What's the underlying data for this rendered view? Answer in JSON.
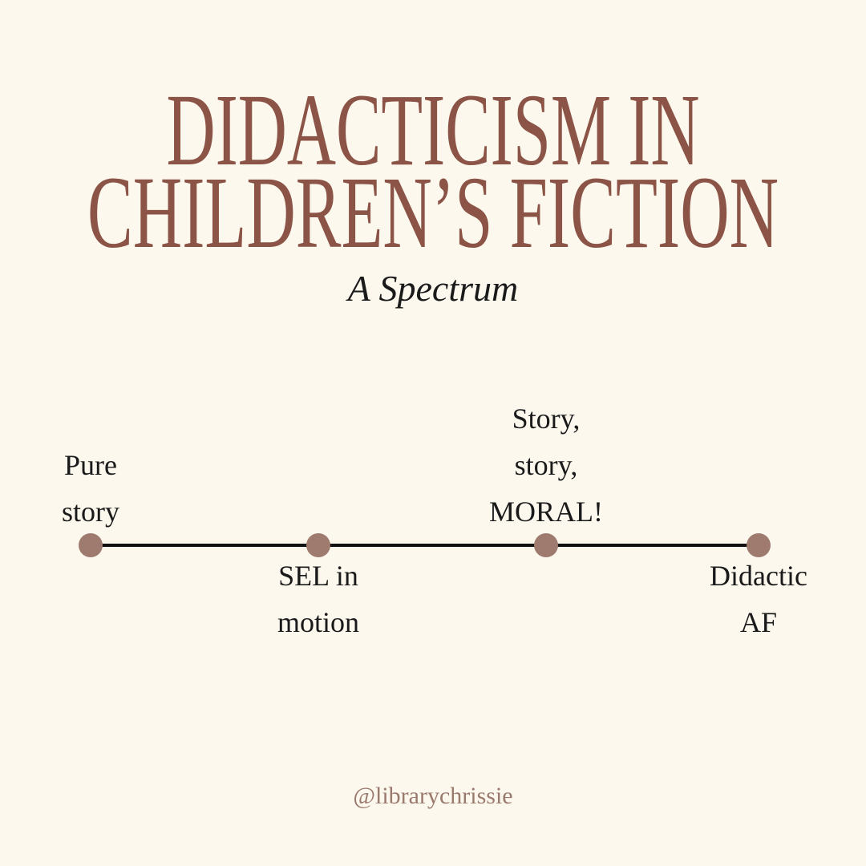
{
  "header": {
    "title_lines": [
      "DIDACTICISM IN",
      "CHILDREN’S FICTION"
    ],
    "subtitle": "A Spectrum"
  },
  "spectrum": {
    "points": [
      {
        "label_lines": [
          "Pure",
          "story"
        ]
      },
      {
        "label_lines": [
          "SEL in",
          "motion"
        ]
      },
      {
        "label_lines": [
          "Story,",
          "story,",
          "MORAL!"
        ]
      },
      {
        "label_lines": [
          "Didactic",
          "AF"
        ]
      }
    ]
  },
  "footer": {
    "handle": "@librarychrissie"
  }
}
